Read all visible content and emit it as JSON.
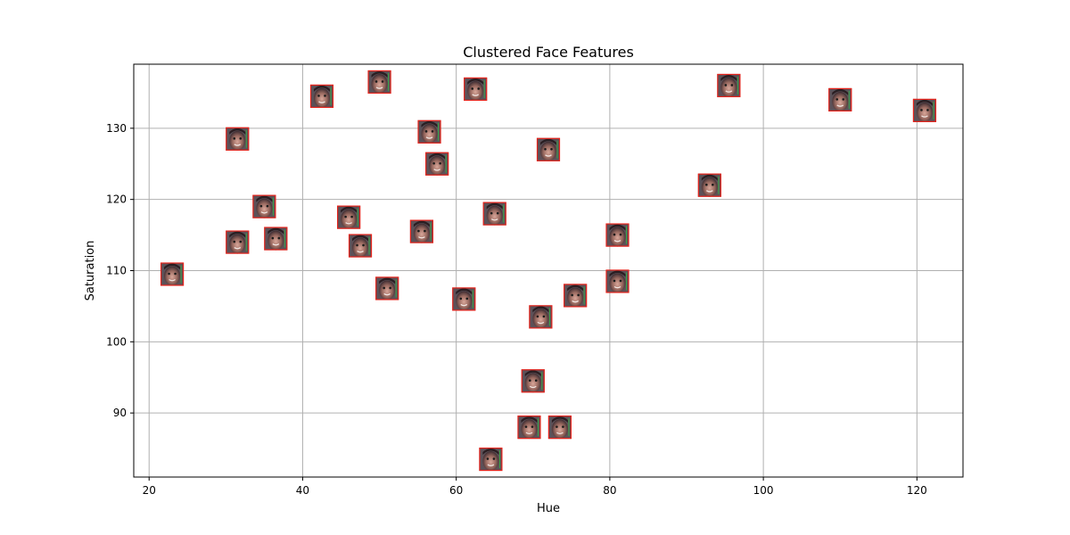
{
  "chart_data": {
    "type": "scatter",
    "title": "Clustered Face Features",
    "xlabel": "Hue",
    "ylabel": "Saturation",
    "xlim": [
      18,
      126
    ],
    "ylim": [
      81,
      139
    ],
    "xticks": [
      20,
      40,
      60,
      80,
      100,
      120
    ],
    "yticks": [
      90,
      100,
      110,
      120,
      130
    ],
    "grid": true,
    "marker": "face-thumbnail",
    "colors": {
      "frame": "#e8231b",
      "accent": "#2ecc40",
      "grid": "#b0b0b0"
    },
    "points": [
      {
        "x": 23,
        "y": 109.5
      },
      {
        "x": 31.5,
        "y": 128.5
      },
      {
        "x": 31.5,
        "y": 114
      },
      {
        "x": 35,
        "y": 119
      },
      {
        "x": 36.5,
        "y": 114.5
      },
      {
        "x": 42.5,
        "y": 134.5
      },
      {
        "x": 46,
        "y": 117.5
      },
      {
        "x": 47.5,
        "y": 113.5
      },
      {
        "x": 50,
        "y": 136.5
      },
      {
        "x": 51,
        "y": 107.5
      },
      {
        "x": 55.5,
        "y": 115.5
      },
      {
        "x": 56.5,
        "y": 129.5
      },
      {
        "x": 57.5,
        "y": 125
      },
      {
        "x": 61,
        "y": 106
      },
      {
        "x": 62.5,
        "y": 135.5
      },
      {
        "x": 64.5,
        "y": 83.5
      },
      {
        "x": 65,
        "y": 118
      },
      {
        "x": 69.5,
        "y": 88
      },
      {
        "x": 70,
        "y": 94.5
      },
      {
        "x": 71,
        "y": 103.5
      },
      {
        "x": 72,
        "y": 127
      },
      {
        "x": 73.5,
        "y": 88
      },
      {
        "x": 75.5,
        "y": 106.5
      },
      {
        "x": 81,
        "y": 115
      },
      {
        "x": 81,
        "y": 108.5
      },
      {
        "x": 93,
        "y": 122
      },
      {
        "x": 95.5,
        "y": 136
      },
      {
        "x": 110,
        "y": 134
      },
      {
        "x": 121,
        "y": 132.5
      }
    ]
  }
}
